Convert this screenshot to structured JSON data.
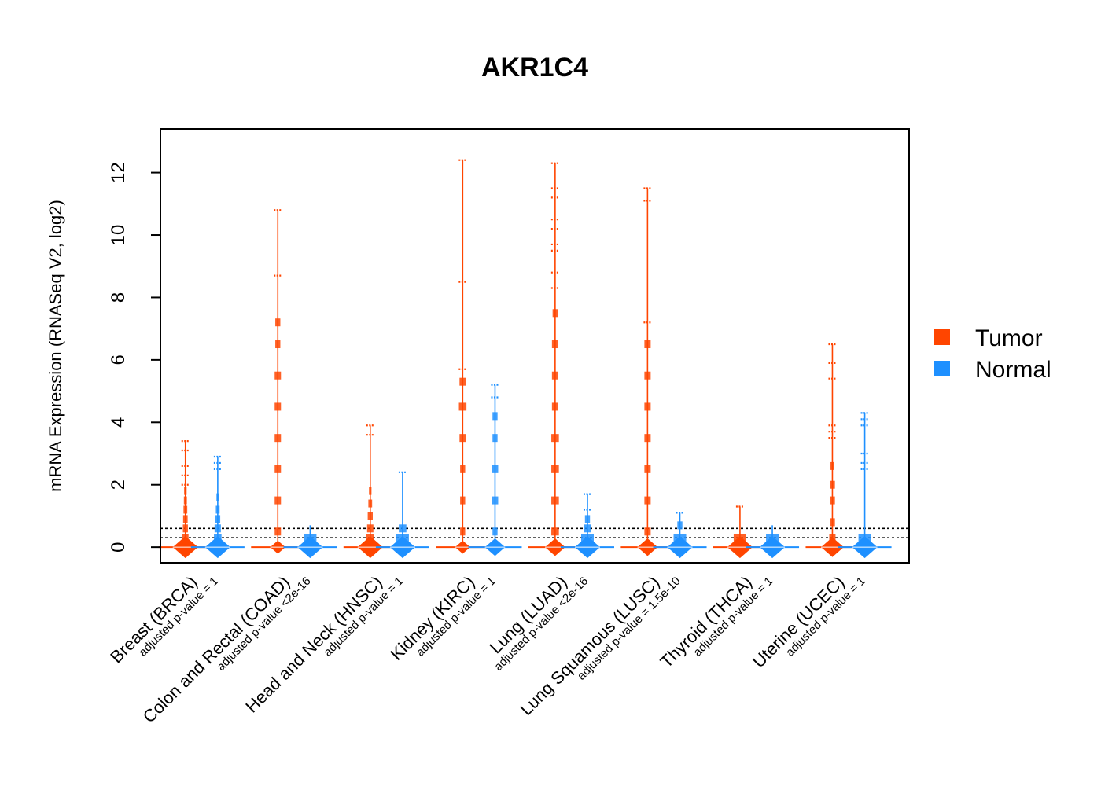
{
  "chart_data": {
    "type": "beeswarm",
    "title": "AKR1C4",
    "ylabel": "mRNA Expression (RNASeq V2, log2)",
    "xlabel": "",
    "ylim": [
      -0.5,
      13.4
    ],
    "yticks": [
      0,
      2,
      4,
      6,
      8,
      10,
      12
    ],
    "reference_lines": [
      0.3,
      0.6
    ],
    "legend": {
      "position": "right",
      "entries": [
        {
          "label": "Tumor",
          "color": "#FF4500"
        },
        {
          "label": "Normal",
          "color": "#1E90FF"
        }
      ]
    },
    "groups": [
      {
        "name": "Breast (BRCA)",
        "pvalue": "adjusted p-value = 1",
        "tumor": {
          "base_level": 0,
          "base_width": 1.0,
          "max": 3.4,
          "stack": [
            {
              "y": 0.3,
              "w": 0.25
            },
            {
              "y": 0.6,
              "w": 0.2
            },
            {
              "y": 0.9,
              "w": 0.18
            },
            {
              "y": 1.2,
              "w": 0.15
            },
            {
              "y": 1.5,
              "w": 0.12
            },
            {
              "y": 1.8,
              "w": 0.1
            }
          ],
          "outliers": [
            2.0,
            2.3,
            2.6,
            3.1,
            3.4
          ]
        },
        "normal": {
          "base_level": 0,
          "base_width": 1.0,
          "max": 2.9,
          "stack": [
            {
              "y": 0.3,
              "w": 0.3
            },
            {
              "y": 0.6,
              "w": 0.25
            },
            {
              "y": 0.9,
              "w": 0.2
            },
            {
              "y": 1.2,
              "w": 0.15
            },
            {
              "y": 1.6,
              "w": 0.1
            }
          ],
          "outliers": [
            2.5,
            2.7,
            2.9
          ]
        }
      },
      {
        "name": "Colon and Rectal (COAD)",
        "pvalue": "adjusted p-value <2e-16",
        "tumor": {
          "base_level": 0,
          "base_width": 0.6,
          "max": 10.8,
          "stack": [
            {
              "y": 0.5,
              "w": 0.25
            },
            {
              "y": 1.5,
              "w": 0.25
            },
            {
              "y": 2.5,
              "w": 0.25
            },
            {
              "y": 3.5,
              "w": 0.25
            },
            {
              "y": 4.5,
              "w": 0.25
            },
            {
              "y": 5.5,
              "w": 0.25
            },
            {
              "y": 6.5,
              "w": 0.2
            },
            {
              "y": 7.2,
              "w": 0.2
            }
          ],
          "outliers": [
            8.7,
            10.8
          ]
        },
        "normal": {
          "base_level": 0,
          "base_width": 1.0,
          "max": 0.7,
          "stack": [
            {
              "y": 0.3,
              "w": 0.5
            }
          ],
          "outliers": []
        }
      },
      {
        "name": "Head and Neck (HNSC)",
        "pvalue": "adjusted p-value = 1",
        "tumor": {
          "base_level": 0,
          "base_width": 1.0,
          "max": 3.9,
          "stack": [
            {
              "y": 0.3,
              "w": 0.3
            },
            {
              "y": 0.6,
              "w": 0.25
            },
            {
              "y": 1.0,
              "w": 0.2
            },
            {
              "y": 1.4,
              "w": 0.15
            },
            {
              "y": 1.8,
              "w": 0.1
            }
          ],
          "outliers": [
            3.6,
            3.9
          ]
        },
        "normal": {
          "base_level": 0,
          "base_width": 1.0,
          "max": 2.4,
          "stack": [
            {
              "y": 0.3,
              "w": 0.5
            },
            {
              "y": 0.6,
              "w": 0.3
            }
          ],
          "outliers": [
            2.4
          ]
        }
      },
      {
        "name": "Kidney (KIRC)",
        "pvalue": "adjusted p-value = 1",
        "tumor": {
          "base_level": 0,
          "base_width": 0.6,
          "max": 12.4,
          "stack": [
            {
              "y": 0.5,
              "w": 0.2
            },
            {
              "y": 1.5,
              "w": 0.2
            },
            {
              "y": 2.5,
              "w": 0.2
            },
            {
              "y": 3.5,
              "w": 0.25
            },
            {
              "y": 4.5,
              "w": 0.3
            },
            {
              "y": 5.3,
              "w": 0.25
            }
          ],
          "outliers": [
            5.7,
            8.5,
            12.4
          ]
        },
        "normal": {
          "base_level": 0,
          "base_width": 0.8,
          "max": 5.2,
          "stack": [
            {
              "y": 0.5,
              "w": 0.2
            },
            {
              "y": 1.5,
              "w": 0.25
            },
            {
              "y": 2.5,
              "w": 0.25
            },
            {
              "y": 3.5,
              "w": 0.2
            },
            {
              "y": 4.2,
              "w": 0.2
            }
          ],
          "outliers": [
            4.8,
            5.2
          ]
        }
      },
      {
        "name": "Lung (LUAD)",
        "pvalue": "adjusted p-value <2e-16",
        "tumor": {
          "base_level": 0,
          "base_width": 0.8,
          "max": 12.3,
          "stack": [
            {
              "y": 0.5,
              "w": 0.3
            },
            {
              "y": 1.5,
              "w": 0.3
            },
            {
              "y": 2.5,
              "w": 0.3
            },
            {
              "y": 3.5,
              "w": 0.3
            },
            {
              "y": 4.5,
              "w": 0.25
            },
            {
              "y": 5.5,
              "w": 0.25
            },
            {
              "y": 6.5,
              "w": 0.25
            },
            {
              "y": 7.5,
              "w": 0.2
            }
          ],
          "outliers": [
            8.3,
            8.8,
            9.5,
            9.7,
            10.2,
            10.5,
            11.2,
            11.5,
            12.3
          ]
        },
        "normal": {
          "base_level": 0,
          "base_width": 1.0,
          "max": 1.7,
          "stack": [
            {
              "y": 0.3,
              "w": 0.5
            },
            {
              "y": 0.6,
              "w": 0.3
            },
            {
              "y": 0.9,
              "w": 0.2
            }
          ],
          "outliers": [
            1.2,
            1.7
          ]
        }
      },
      {
        "name": "Lung Squamous (LUSC)",
        "pvalue": "adjusted p-value = 1.5e-10",
        "tumor": {
          "base_level": 0,
          "base_width": 0.8,
          "max": 11.5,
          "stack": [
            {
              "y": 0.5,
              "w": 0.25
            },
            {
              "y": 1.5,
              "w": 0.25
            },
            {
              "y": 2.5,
              "w": 0.25
            },
            {
              "y": 3.5,
              "w": 0.25
            },
            {
              "y": 4.5,
              "w": 0.25
            },
            {
              "y": 5.5,
              "w": 0.25
            },
            {
              "y": 6.5,
              "w": 0.25
            }
          ],
          "outliers": [
            7.2,
            11.1,
            11.5
          ]
        },
        "normal": {
          "base_level": 0,
          "base_width": 1.0,
          "max": 1.1,
          "stack": [
            {
              "y": 0.3,
              "w": 0.5
            },
            {
              "y": 0.7,
              "w": 0.2
            }
          ],
          "outliers": [
            1.1
          ]
        }
      },
      {
        "name": "Thyroid (THCA)",
        "pvalue": "adjusted p-value = 1",
        "tumor": {
          "base_level": 0,
          "base_width": 1.0,
          "max": 1.3,
          "stack": [
            {
              "y": 0.3,
              "w": 0.5
            }
          ],
          "outliers": [
            1.3
          ]
        },
        "normal": {
          "base_level": 0,
          "base_width": 1.0,
          "max": 0.7,
          "stack": [
            {
              "y": 0.3,
              "w": 0.5
            }
          ],
          "outliers": []
        }
      },
      {
        "name": "Uterine (UCEC)",
        "pvalue": "adjusted p-value = 1",
        "tumor": {
          "base_level": 0,
          "base_width": 0.9,
          "max": 6.5,
          "stack": [
            {
              "y": 0.3,
              "w": 0.25
            },
            {
              "y": 0.8,
              "w": 0.2
            },
            {
              "y": 1.5,
              "w": 0.2
            },
            {
              "y": 2.0,
              "w": 0.2
            },
            {
              "y": 2.6,
              "w": 0.15
            }
          ],
          "outliers": [
            3.5,
            3.7,
            3.9,
            5.4,
            5.9,
            6.5
          ]
        },
        "normal": {
          "base_level": 0,
          "base_width": 1.0,
          "max": 4.3,
          "stack": [
            {
              "y": 0.3,
              "w": 0.5
            }
          ],
          "outliers": [
            2.5,
            2.7,
            3.0,
            3.9,
            4.1,
            4.3
          ]
        }
      }
    ]
  }
}
